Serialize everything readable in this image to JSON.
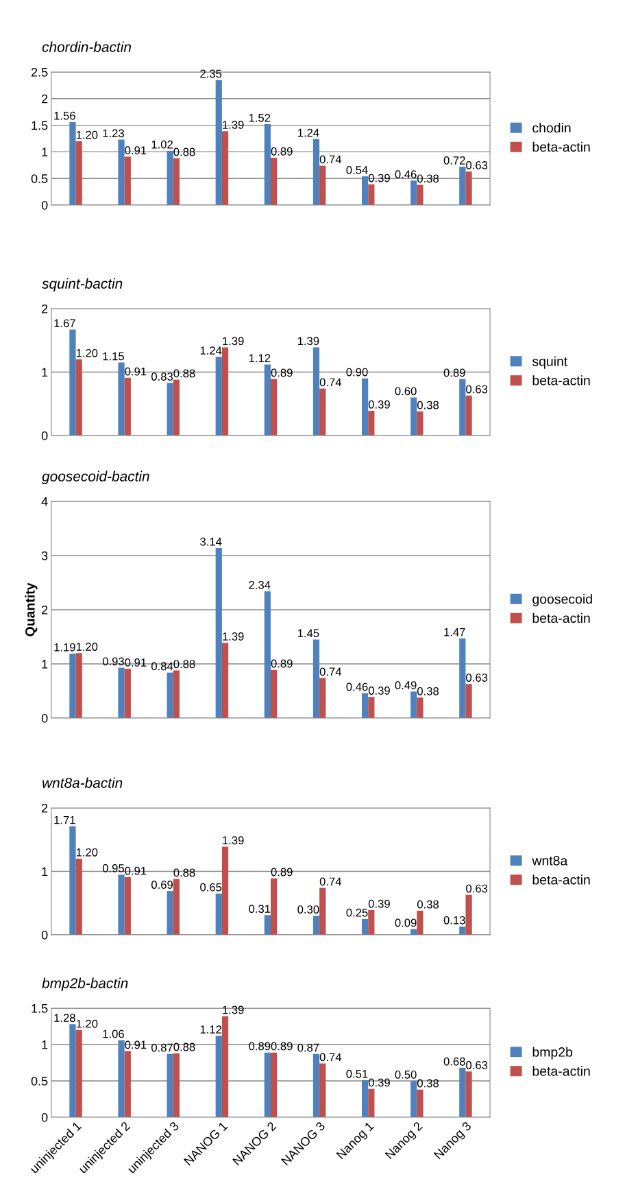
{
  "chart_data": [
    {
      "type": "bar",
      "title": "chordin-bactin",
      "categories": [
        null,
        null,
        null,
        null,
        null,
        null,
        null,
        null,
        null
      ],
      "ylim": [
        0,
        2.5
      ],
      "yticks": [
        0,
        0.5,
        1,
        1.5,
        2,
        2.5
      ],
      "grid": "y",
      "legend": "right",
      "tick_labels": "y",
      "series": [
        {
          "name": "chodin",
          "color": "#4f81bd",
          "values": [
            1.56,
            1.23,
            1.02,
            2.35,
            1.52,
            1.24,
            0.54,
            0.46,
            0.72
          ],
          "value_labels": [
            "1.56",
            "1.23",
            "1.02",
            "2.35",
            "1.52",
            "1.24",
            "0.54",
            "0.46",
            "0.72"
          ]
        },
        {
          "name": "beta-actin",
          "color": "#c0504d",
          "values": [
            1.2,
            0.91,
            0.88,
            1.39,
            0.89,
            0.74,
            0.39,
            0.38,
            0.63
          ],
          "value_labels": [
            "1.20",
            "0.91",
            "0.88",
            "1.39",
            "0.89",
            "0.74",
            "0.39",
            "0.38",
            "0.63"
          ]
        }
      ]
    },
    {
      "type": "bar",
      "title": "squint-bactin",
      "categories": [
        null,
        null,
        null,
        null,
        null,
        null,
        null,
        null,
        null
      ],
      "ylim": [
        0,
        2
      ],
      "yticks": [
        0,
        1,
        2
      ],
      "grid": "y",
      "legend": "right",
      "tick_labels": "y",
      "series": [
        {
          "name": "squint",
          "color": "#4f81bd",
          "values": [
            1.67,
            1.15,
            0.83,
            1.24,
            1.12,
            1.39,
            0.9,
            0.6,
            0.89
          ],
          "value_labels": [
            "1.67",
            "1.15",
            "0.83",
            "1.24",
            "1.12",
            "1.39",
            "0.90",
            "0.60",
            "0.89"
          ]
        },
        {
          "name": "beta-actin",
          "color": "#c0504d",
          "values": [
            1.2,
            0.91,
            0.88,
            1.39,
            0.89,
            0.74,
            0.39,
            0.38,
            0.63
          ],
          "value_labels": [
            "1.20",
            "0.91",
            "0.88",
            "1.39",
            "0.89",
            "0.74",
            "0.39",
            "0.38",
            "0.63"
          ]
        }
      ]
    },
    {
      "type": "bar",
      "title": "goosecoid-bactin",
      "ylabel": "Quantity",
      "categories": [
        null,
        null,
        null,
        null,
        null,
        null,
        null,
        null,
        null
      ],
      "ylim": [
        0,
        4
      ],
      "yticks": [
        0,
        1,
        2,
        3,
        4
      ],
      "grid": "y",
      "legend": "right",
      "tick_labels": "y",
      "series": [
        {
          "name": "goosecoid",
          "color": "#4f81bd",
          "values": [
            1.19,
            0.93,
            0.84,
            3.14,
            2.34,
            1.45,
            0.46,
            0.49,
            1.47
          ],
          "value_labels": [
            "1.19",
            "0.93",
            "0.84",
            "3.14",
            "2.34",
            "1.45",
            "0.46",
            "0.49",
            "1.47"
          ]
        },
        {
          "name": "beta-actin",
          "color": "#c0504d",
          "values": [
            1.2,
            0.91,
            0.88,
            1.39,
            0.89,
            0.74,
            0.39,
            0.38,
            0.63
          ],
          "value_labels": [
            "1.20",
            "0.91",
            "0.88",
            "1.39",
            "0.89",
            "0.74",
            "0.39",
            "0.38",
            "0.63"
          ]
        }
      ]
    },
    {
      "type": "bar",
      "title": "wnt8a-bactin",
      "categories": [
        null,
        null,
        null,
        null,
        null,
        null,
        null,
        null,
        null
      ],
      "ylim": [
        0,
        2
      ],
      "yticks": [
        0,
        1,
        2
      ],
      "grid": "y",
      "legend": "right",
      "tick_labels": "y",
      "series": [
        {
          "name": "wnt8a",
          "color": "#4f81bd",
          "values": [
            1.71,
            0.95,
            0.69,
            0.65,
            0.31,
            0.3,
            0.25,
            0.09,
            0.13
          ],
          "value_labels": [
            "1.71",
            "0.95",
            "0.69",
            "0.65",
            "0.31",
            "0.30",
            "0.25",
            "0.09",
            "0.13"
          ]
        },
        {
          "name": "beta-actin",
          "color": "#c0504d",
          "values": [
            1.2,
            0.91,
            0.88,
            1.39,
            0.89,
            0.74,
            0.39,
            0.38,
            0.63
          ],
          "value_labels": [
            "1.20",
            "0.91",
            "0.88",
            "1.39",
            "0.89",
            "0.74",
            "0.39",
            "0.38",
            "0.63"
          ]
        }
      ]
    },
    {
      "type": "bar",
      "title": "bmp2b-bactin",
      "categories": [
        "uninjected 1",
        "uninjected 2",
        "uninjected 3",
        "NANOG 1",
        "NANOG 2",
        "NANOG 3",
        "Nanog 1",
        "Nanog 2",
        "Nanog 3"
      ],
      "ylim": [
        0,
        1.5
      ],
      "yticks": [
        0,
        0.5,
        1,
        1.5
      ],
      "grid": "y",
      "legend": "right",
      "series": [
        {
          "name": "bmp2b",
          "color": "#4f81bd",
          "values": [
            1.28,
            1.06,
            0.87,
            1.12,
            0.89,
            0.87,
            0.51,
            0.5,
            0.68
          ],
          "value_labels": [
            "1.28",
            "1.06",
            "0.87",
            "1.12",
            "0.89",
            "0.87",
            "0.51",
            "0.50",
            "0.68"
          ]
        },
        {
          "name": "beta-actin",
          "color": "#c0504d",
          "values": [
            1.2,
            0.91,
            0.88,
            1.39,
            0.89,
            0.74,
            0.39,
            0.38,
            0.63
          ],
          "value_labels": [
            "1.20",
            "0.91",
            "0.88",
            "1.39",
            "0.89",
            "0.74",
            "0.39",
            "0.38",
            "0.63"
          ]
        }
      ]
    }
  ]
}
